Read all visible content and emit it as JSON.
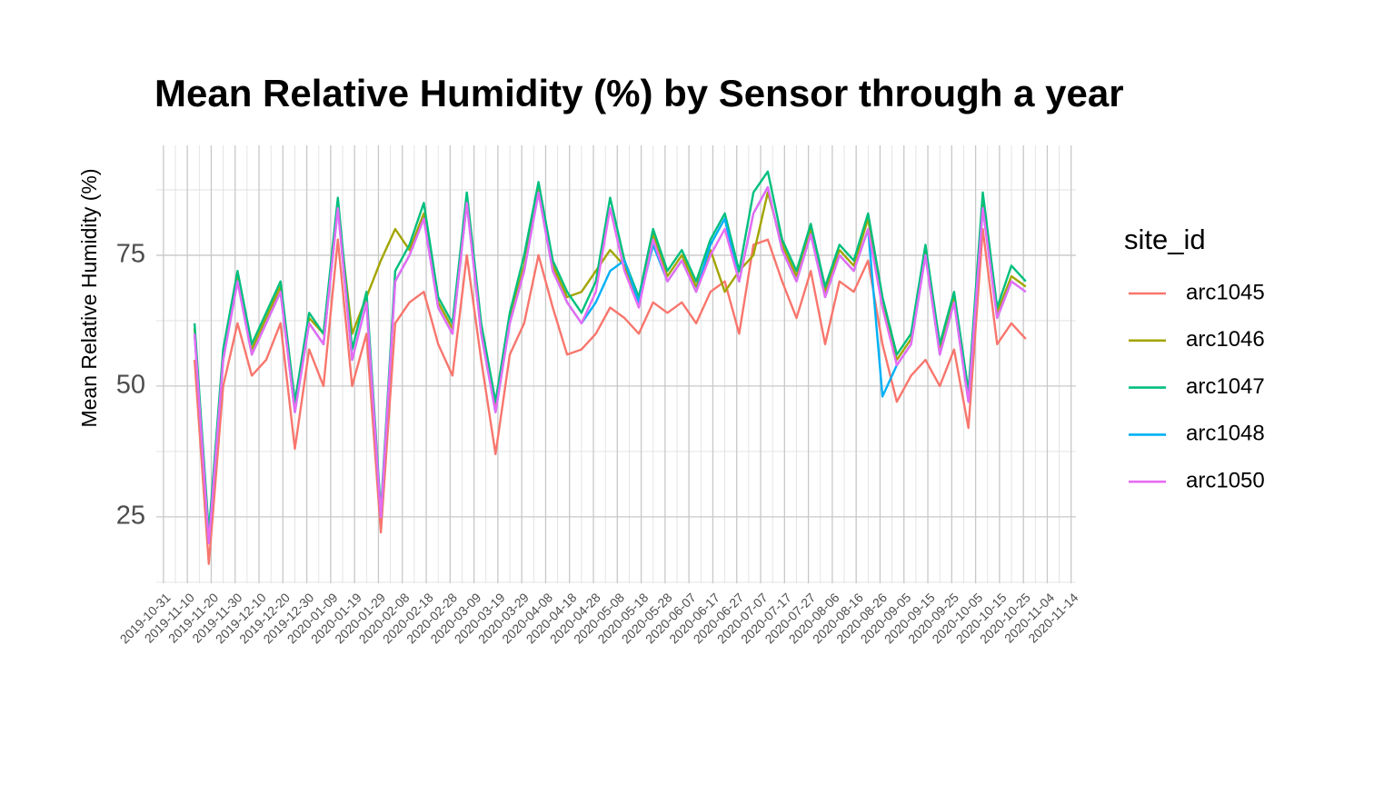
{
  "chart_data": {
    "type": "line",
    "title": "Mean Relative Humidity (%) by Sensor through a year",
    "y_label": "Mean Relative Humidity (%)",
    "legend_title": "site_id",
    "legend_position": "right",
    "grid": true,
    "x": [
      "2019-11-13",
      "2019-11-19",
      "2019-11-25",
      "2019-12-01",
      "2019-12-07",
      "2019-12-13",
      "2019-12-19",
      "2019-12-25",
      "2019-12-31",
      "2020-01-06",
      "2020-01-12",
      "2020-01-18",
      "2020-01-24",
      "2020-01-30",
      "2020-02-05",
      "2020-02-11",
      "2020-02-17",
      "2020-02-23",
      "2020-02-29",
      "2020-03-06",
      "2020-03-12",
      "2020-03-18",
      "2020-03-24",
      "2020-03-30",
      "2020-04-05",
      "2020-04-11",
      "2020-04-17",
      "2020-04-23",
      "2020-04-29",
      "2020-05-05",
      "2020-05-11",
      "2020-05-17",
      "2020-05-23",
      "2020-05-29",
      "2020-06-04",
      "2020-06-10",
      "2020-06-16",
      "2020-06-22",
      "2020-06-28",
      "2020-07-04",
      "2020-07-10",
      "2020-07-16",
      "2020-07-22",
      "2020-07-28",
      "2020-08-03",
      "2020-08-09",
      "2020-08-15",
      "2020-08-21",
      "2020-08-27",
      "2020-09-02",
      "2020-09-08",
      "2020-09-14",
      "2020-09-20",
      "2020-09-26",
      "2020-10-02",
      "2020-10-08",
      "2020-10-14",
      "2020-10-20",
      "2020-10-26"
    ],
    "xlim": [
      "2019-10-28",
      "2020-11-16"
    ],
    "xticks": [
      "2019-10-31",
      "2019-11-10",
      "2019-11-20",
      "2019-11-30",
      "2019-12-10",
      "2019-12-20",
      "2019-12-30",
      "2020-01-09",
      "2020-01-19",
      "2020-01-29",
      "2020-02-08",
      "2020-02-18",
      "2020-02-28",
      "2020-03-09",
      "2020-03-19",
      "2020-03-29",
      "2020-04-08",
      "2020-04-18",
      "2020-04-28",
      "2020-05-08",
      "2020-05-18",
      "2020-05-28",
      "2020-06-07",
      "2020-06-17",
      "2020-06-27",
      "2020-07-07",
      "2020-07-17",
      "2020-07-27",
      "2020-08-06",
      "2020-08-16",
      "2020-08-26",
      "2020-09-05",
      "2020-09-15",
      "2020-09-25",
      "2020-10-05",
      "2020-10-15",
      "2020-10-25",
      "2020-11-04",
      "2020-11-14"
    ],
    "ylim": [
      12.3,
      96
    ],
    "yticks": [
      25,
      50,
      75
    ],
    "series": [
      {
        "name": "arc1045",
        "color": "#F8766D",
        "values": [
          55,
          16,
          50,
          62,
          52,
          55,
          62,
          38,
          57,
          50,
          78,
          50,
          60,
          22,
          62,
          66,
          68,
          58,
          52,
          75,
          55,
          37,
          56,
          62,
          75,
          65,
          56,
          57,
          60,
          65,
          63,
          60,
          66,
          64,
          66,
          62,
          68,
          70,
          60,
          77,
          78,
          70,
          63,
          72,
          58,
          70,
          68,
          74,
          58,
          47,
          52,
          55,
          50,
          57,
          42,
          80,
          58,
          62,
          59
        ]
      },
      {
        "name": "arc1046",
        "color": "#A3A500",
        "values": [
          61,
          21,
          56,
          71,
          57,
          63,
          69,
          46,
          63,
          60,
          84,
          60,
          67,
          74,
          80,
          76,
          83,
          66,
          61,
          86,
          61,
          46,
          63,
          73,
          88,
          73,
          67,
          68,
          72,
          76,
          73,
          66,
          79,
          71,
          75,
          69,
          76,
          68,
          72,
          75,
          87,
          77,
          71,
          80,
          68,
          76,
          73,
          82,
          66,
          55,
          59,
          76,
          57,
          67,
          48,
          85,
          64,
          71,
          69
        ]
      },
      {
        "name": "arc1047",
        "color": "#00BF7D",
        "values": [
          62,
          22,
          57,
          72,
          58,
          64,
          70,
          47,
          64,
          60,
          86,
          57,
          68,
          26,
          72,
          77,
          85,
          67,
          62,
          87,
          62,
          47,
          64,
          75,
          89,
          74,
          68,
          64,
          70,
          86,
          74,
          67,
          80,
          72,
          76,
          70,
          78,
          83,
          72,
          87,
          91,
          78,
          72,
          81,
          69,
          77,
          74,
          83,
          67,
          56,
          60,
          77,
          58,
          68,
          49,
          87,
          65,
          73,
          70
        ]
      },
      {
        "name": "arc1048",
        "color": "#00B0F6",
        "values": [
          60,
          20,
          55,
          70,
          56,
          62,
          68,
          45,
          62,
          58,
          84,
          55,
          66,
          25,
          70,
          75,
          82,
          65,
          60,
          85,
          60,
          45,
          62,
          72,
          87,
          72,
          66,
          62,
          66,
          72,
          74,
          66,
          77,
          70,
          74,
          68,
          77,
          82,
          70,
          83,
          88,
          76,
          70,
          79,
          67,
          75,
          72,
          80,
          48,
          54,
          58,
          75,
          56,
          66,
          47,
          84,
          63,
          70,
          68
        ]
      },
      {
        "name": "arc1050",
        "color": "#E76BF3",
        "values": [
          60,
          20,
          55,
          70,
          56,
          62,
          68,
          45,
          62,
          58,
          84,
          55,
          66,
          25,
          70,
          75,
          82,
          65,
          60,
          85,
          60,
          45,
          62,
          72,
          87,
          72,
          66,
          62,
          68,
          84,
          72,
          65,
          78,
          70,
          74,
          68,
          75,
          80,
          70,
          83,
          88,
          76,
          70,
          79,
          67,
          75,
          72,
          80,
          65,
          54,
          58,
          75,
          56,
          66,
          47,
          84,
          63,
          70,
          68
        ]
      }
    ]
  }
}
